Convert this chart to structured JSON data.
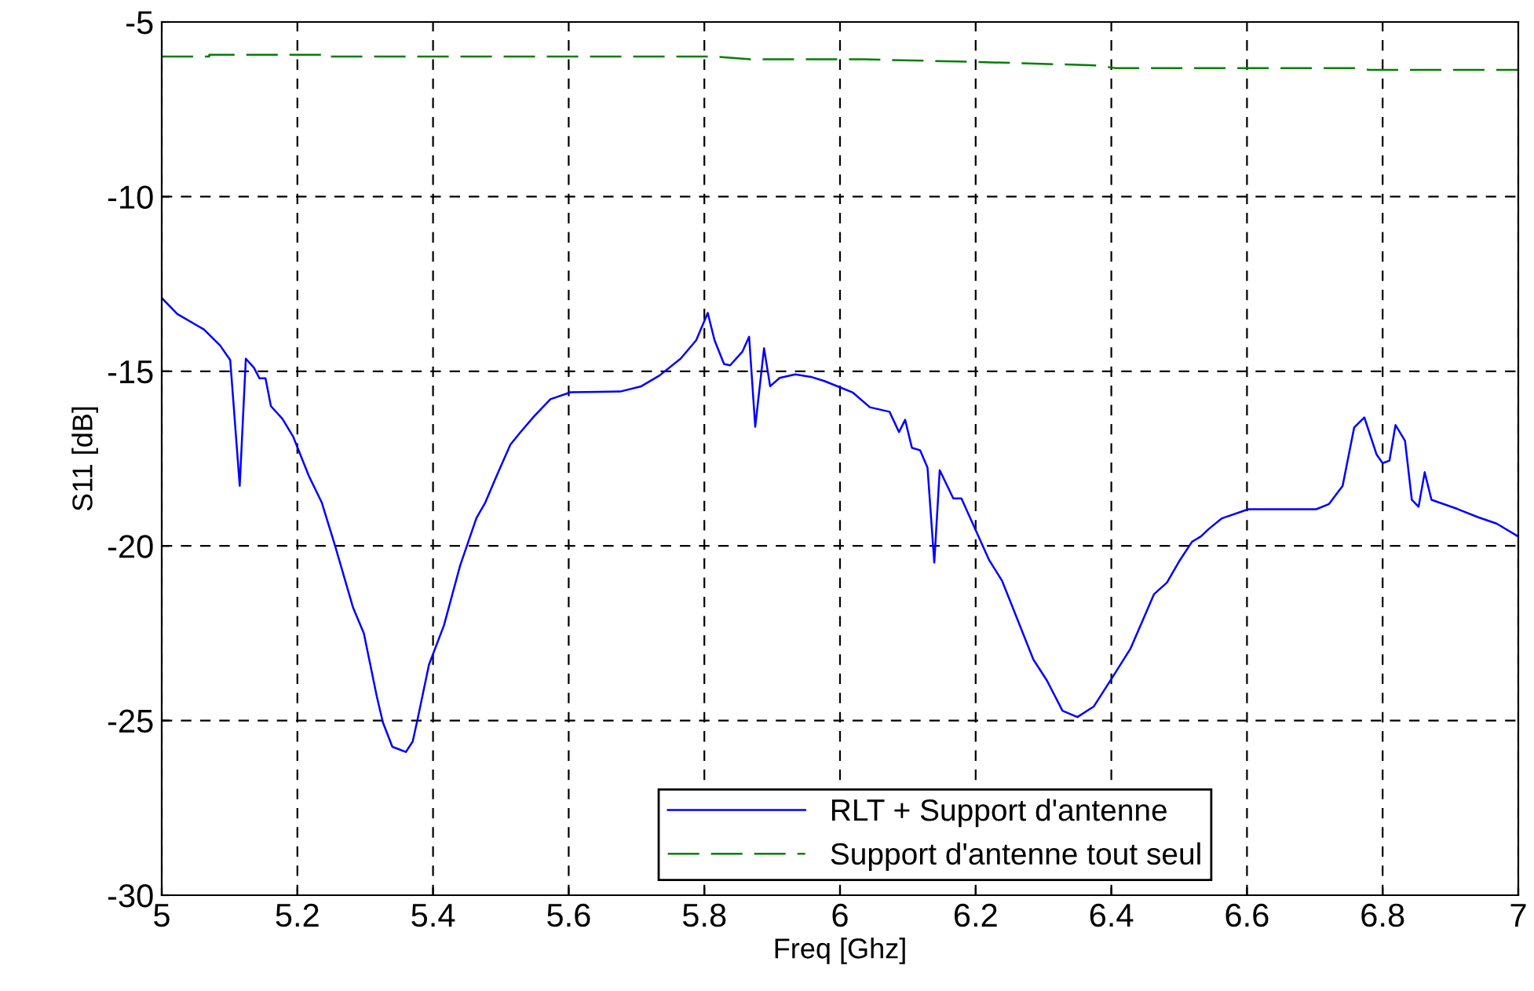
{
  "chart_data": {
    "type": "line",
    "xlabel": "Freq [Ghz]",
    "ylabel": "S11 [dB]",
    "xlim": [
      5,
      7
    ],
    "ylim": [
      -30,
      -5
    ],
    "xticks": [
      5,
      5.2,
      5.4,
      5.6,
      5.8,
      6,
      6.2,
      6.4,
      6.6,
      6.8,
      7
    ],
    "yticks": [
      -30,
      -25,
      -20,
      -15,
      -10,
      -5
    ],
    "grid": true,
    "legend": "bottom",
    "marker": "none",
    "series": [
      {
        "name": "RLT + Support d'antenne",
        "color": "#0000ff",
        "line_style": "solid",
        "x": [
          5.0,
          5.023,
          5.062,
          5.086,
          5.101,
          5.115,
          5.124,
          5.136,
          5.144,
          5.153,
          5.161,
          5.178,
          5.194,
          5.217,
          5.236,
          5.255,
          5.282,
          5.298,
          5.317,
          5.326,
          5.34,
          5.36,
          5.37,
          5.377,
          5.394,
          5.416,
          5.44,
          5.464,
          5.477,
          5.495,
          5.514,
          5.529,
          5.549,
          5.573,
          5.603,
          5.676,
          5.707,
          5.734,
          5.765,
          5.788,
          5.805,
          5.815,
          5.829,
          5.838,
          5.856,
          5.866,
          5.875,
          5.888,
          5.897,
          5.911,
          5.934,
          5.957,
          5.977,
          6.0,
          6.019,
          6.044,
          6.073,
          6.087,
          6.096,
          6.106,
          6.118,
          6.129,
          6.139,
          6.147,
          6.167,
          6.179,
          6.22,
          6.239,
          6.285,
          6.305,
          6.328,
          6.35,
          6.374,
          6.401,
          6.428,
          6.463,
          6.482,
          6.501,
          6.519,
          6.532,
          6.544,
          6.563,
          6.602,
          6.702,
          6.721,
          6.741,
          6.758,
          6.773,
          6.791,
          6.8,
          6.81,
          6.819,
          6.833,
          6.843,
          6.853,
          6.862,
          6.872,
          6.91,
          6.941,
          6.968,
          7.0
        ],
        "values": [
          -12.9,
          -13.36,
          -13.8,
          -14.26,
          -14.68,
          -18.28,
          -14.64,
          -14.9,
          -15.2,
          -15.2,
          -16.0,
          -16.36,
          -16.88,
          -18.0,
          -18.76,
          -19.96,
          -21.76,
          -22.5,
          -24.3,
          -25.05,
          -25.75,
          -25.9,
          -25.6,
          -24.98,
          -23.4,
          -22.28,
          -20.56,
          -19.2,
          -18.76,
          -17.94,
          -17.1,
          -16.74,
          -16.29,
          -15.8,
          -15.6,
          -15.58,
          -15.43,
          -15.12,
          -14.64,
          -14.11,
          -13.33,
          -14.11,
          -14.79,
          -14.83,
          -14.44,
          -14.01,
          -16.59,
          -14.34,
          -15.43,
          -15.19,
          -15.09,
          -15.16,
          -15.28,
          -15.46,
          -15.61,
          -16.03,
          -16.16,
          -16.74,
          -16.39,
          -17.19,
          -17.26,
          -17.76,
          -20.48,
          -17.83,
          -18.64,
          -18.64,
          -20.41,
          -21.0,
          -23.25,
          -23.85,
          -24.72,
          -24.9,
          -24.6,
          -23.78,
          -22.95,
          -21.38,
          -21.05,
          -20.41,
          -19.88,
          -19.73,
          -19.51,
          -19.21,
          -18.95,
          -18.95,
          -18.8,
          -18.28,
          -16.61,
          -16.32,
          -17.38,
          -17.63,
          -17.56,
          -16.54,
          -16.99,
          -18.68,
          -18.88,
          -17.89,
          -18.68,
          -18.94,
          -19.18,
          -19.36,
          -19.73
        ]
      },
      {
        "name": "Support d'antenne tout seul",
        "color": "#008000",
        "line_style": "dashed",
        "x": [
          5.0,
          5.07,
          5.07,
          5.244,
          5.244,
          5.816,
          5.868,
          6.035,
          6.195,
          6.375,
          6.407,
          6.761,
          6.78,
          7.0
        ],
        "values": [
          -5.99,
          -5.99,
          -5.94,
          -5.94,
          -5.99,
          -5.99,
          -6.07,
          -6.07,
          -6.14,
          -6.24,
          -6.32,
          -6.32,
          -6.37,
          -6.37
        ]
      }
    ]
  }
}
